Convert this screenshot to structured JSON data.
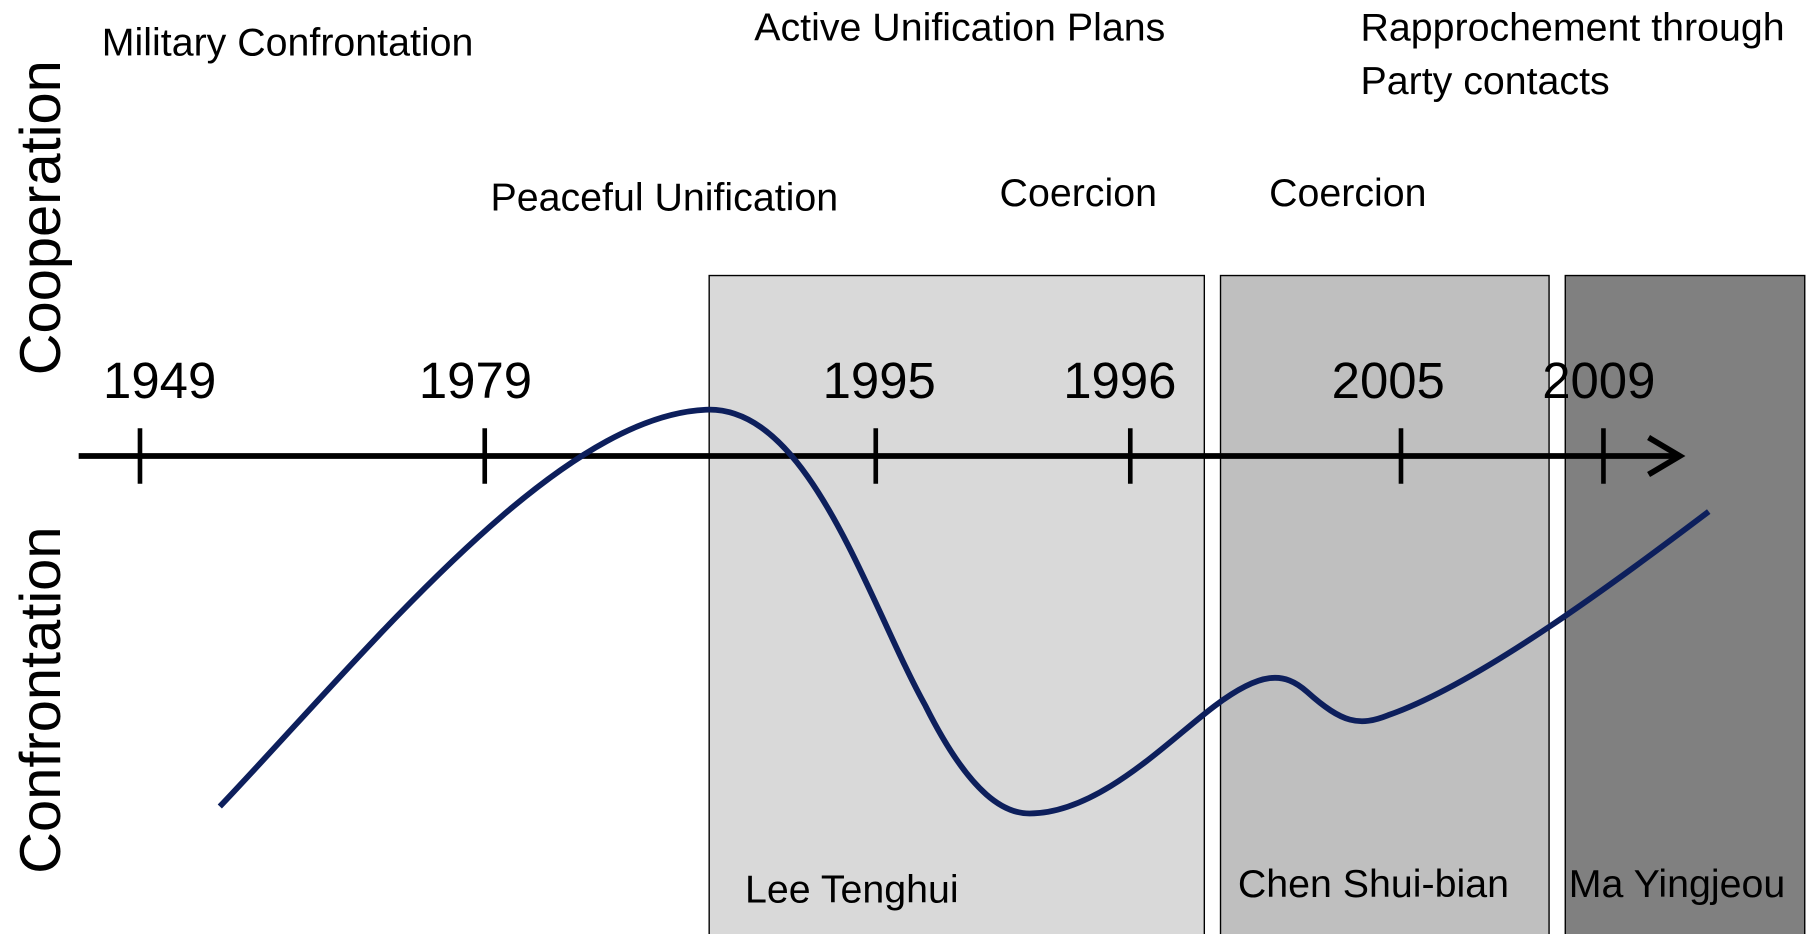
{
  "axis_labels": [
    "Cooperation",
    "Confrontation"
  ],
  "years": [
    "1949",
    "1979",
    "1995",
    "1996",
    "2005",
    "2009"
  ],
  "phases": [
    "Military Confrontation",
    "Peaceful Unification",
    "Active Unification Plans",
    "Coercion",
    "Coercion",
    [
      "Rapprochement through",
      "Party contacts"
    ]
  ],
  "leaders": [
    "Lee Tenghui",
    "Chen Shui-bian",
    "Ma Yingjeou"
  ]
}
